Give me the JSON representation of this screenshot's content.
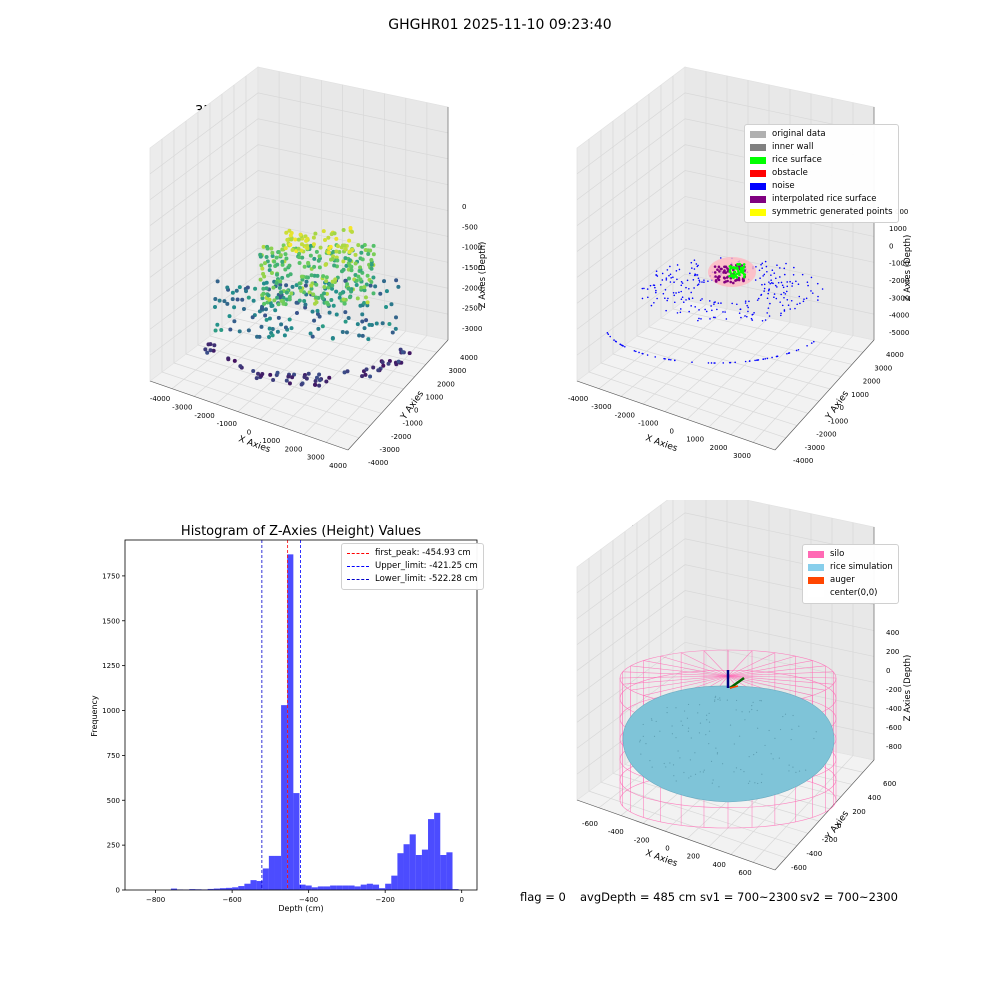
{
  "suptitle": "GHGHR01 2025-11-10 09:23:40",
  "panel1": {
    "title": "3D Plot of Silo Interior(row data)",
    "xlabel": "X Axies",
    "ylabel": "Y Axies",
    "zlabel": "Z Axies (Depth)",
    "xticks": [
      "-4000",
      "-3000",
      "-2000",
      "-1000",
      "0",
      "1000",
      "2000",
      "3000",
      "4000"
    ],
    "yticks": [
      "-4000",
      "-3000",
      "-2000",
      "-1000",
      "0",
      "1000",
      "2000",
      "3000",
      "4000"
    ],
    "zticks": [
      "0",
      "-500",
      "-1000",
      "-1500",
      "-2000",
      "-2500",
      "-3000"
    ]
  },
  "panel2": {
    "title": "3D classify of Silo Interior",
    "xlabel": "X Axies",
    "ylabel": "Y Axies",
    "zlabel": "Z Axies (Depth)",
    "xticks": [
      "-4000",
      "-3000",
      "-2000",
      "-1000",
      "0",
      "1000",
      "2000",
      "3000"
    ],
    "yticks": [
      "-4000",
      "-3000",
      "-2000",
      "-1000",
      "0",
      "1000",
      "2000",
      "3000",
      "4000"
    ],
    "zticks": [
      "1000",
      "0",
      "-1000",
      "-2000",
      "-3000",
      "-4000",
      "-5000"
    ],
    "z_partial_tick": "000",
    "legend": [
      {
        "label": "original data",
        "color": "#b0b0b0"
      },
      {
        "label": "inner wall",
        "color": "#808080"
      },
      {
        "label": "rice surface",
        "color": "#00ff00"
      },
      {
        "label": "obstacle",
        "color": "#ff0000"
      },
      {
        "label": "noise",
        "color": "#0000ff"
      },
      {
        "label": "interpolated rice surface",
        "color": "#800080"
      },
      {
        "label": "symmetric generated points",
        "color": "#ffff00"
      }
    ]
  },
  "chart_data": {
    "type": "bar",
    "title": "Histogram of Z-Axies (Height) Values",
    "xlabel": "Depth (cm)",
    "ylabel": "Frequency",
    "xlim": [
      -880,
      40
    ],
    "ylim": [
      0,
      1950
    ],
    "xticks": [
      -800,
      -600,
      -400,
      -200,
      0
    ],
    "yticks": [
      0,
      250,
      500,
      750,
      1000,
      1250,
      1500,
      1750
    ],
    "bin_width": 16,
    "bins_start": [
      -760,
      -744,
      -728,
      -712,
      -696,
      -680,
      -664,
      -648,
      -632,
      -616,
      -600,
      -584,
      -568,
      -552,
      -536,
      -520,
      -504,
      -488,
      -472,
      -456,
      -440,
      -424,
      -408,
      -392,
      -376,
      -360,
      -344,
      -328,
      -312,
      -296,
      -280,
      -264,
      -248,
      -232,
      -216,
      -200,
      -184,
      -168,
      -152,
      -136,
      -120,
      -104,
      -88,
      -72,
      -56,
      -40,
      -24,
      -8
    ],
    "values": [
      8,
      3,
      2,
      5,
      4,
      3,
      6,
      8,
      10,
      12,
      15,
      22,
      35,
      55,
      50,
      120,
      190,
      190,
      1030,
      1870,
      540,
      30,
      25,
      15,
      20,
      20,
      25,
      25,
      25,
      25,
      20,
      30,
      35,
      30,
      10,
      35,
      80,
      205,
      255,
      310,
      195,
      225,
      395,
      430,
      195,
      210,
      5,
      0
    ],
    "color": "#0000ff",
    "vlines": [
      {
        "label": "first_peak: -454.93 cm",
        "x": -454.93,
        "color": "#ff0000"
      },
      {
        "label": "Upper_limit: -421.25 cm",
        "x": -421.25,
        "color": "#0000ff"
      },
      {
        "label": "Lower_limit: -522.28 cm",
        "x": -522.28,
        "color": "#0000cc"
      }
    ]
  },
  "panel4": {
    "title": "3D simulation of Silo Interior",
    "xlabel": "X Axies",
    "ylabel": "Y Axies",
    "zlabel": "Z Axies (Depth)",
    "xticks": [
      "-600",
      "-400",
      "-200",
      "0",
      "200",
      "400",
      "600"
    ],
    "yticks": [
      "-600",
      "-400",
      "-200",
      "0",
      "200",
      "400",
      "600"
    ],
    "zticks": [
      "400",
      "200",
      "0",
      "-200",
      "-400",
      "-600",
      "-800"
    ],
    "legend": [
      {
        "label": "silo",
        "color": "#ff69b4"
      },
      {
        "label": "rice simulation",
        "color": "#87ceeb"
      },
      {
        "label": "auger",
        "color": "#ff4500"
      },
      {
        "label": "center(0,0)",
        "color": "#ffffff"
      }
    ]
  },
  "footer": {
    "flag": "flag = 0",
    "avg": "avgDepth = 485 cm",
    "sv1": "sv1 = 700~2300",
    "sv2": "sv2 = 700~2300"
  }
}
